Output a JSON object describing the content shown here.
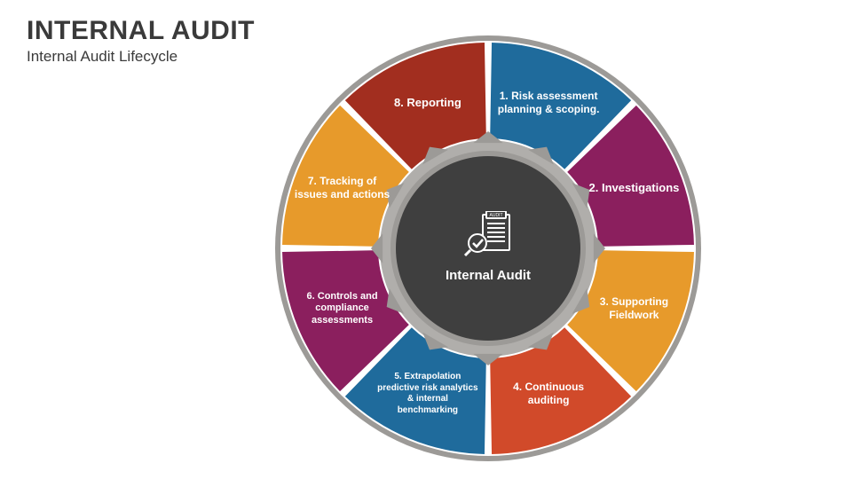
{
  "title": "INTERNAL AUDIT",
  "subtitle": "Internal Audit Lifecycle",
  "center_label": "Internal Audit",
  "diagram": {
    "type": "radial-segmented-wheel",
    "segments_count": 8,
    "outer_radius": 240,
    "inner_radius": 120,
    "gap_deg": 2,
    "background_color": "#ffffff",
    "rim_color": "#9c9a97",
    "gear_ring_outer_color": "#b0aeab",
    "gear_ring_inner_color": "#9c9a97",
    "center_fill": "#3f3f3f",
    "center_text_color": "#ffffff",
    "label_color": "#ffffff",
    "label_fontsize_default": 12,
    "segments": [
      {
        "n": 1,
        "label": "1. Risk assessment planning & scoping.",
        "color": "#1f6b9c",
        "fontsize": 12
      },
      {
        "n": 2,
        "label": "2. Investigations",
        "color": "#8b1f5e",
        "fontsize": 13
      },
      {
        "n": 3,
        "label": "3. Supporting Fieldwork",
        "color": "#e79a2b",
        "fontsize": 12
      },
      {
        "n": 4,
        "label": "4. Continuous auditing",
        "color": "#d14a2a",
        "fontsize": 12
      },
      {
        "n": 5,
        "label": "5. Extrapolation predictive risk analytics & internal benchmarking",
        "color": "#1f6b9c",
        "fontsize": 10
      },
      {
        "n": 6,
        "label": "6. Controls and compliance assessments",
        "color": "#8b1f5e",
        "fontsize": 11
      },
      {
        "n": 7,
        "label": "7. Tracking of issues and actions",
        "color": "#e79a2b",
        "fontsize": 12
      },
      {
        "n": 8,
        "label": "8. Reporting",
        "color": "#a22e1f",
        "fontsize": 13
      }
    ]
  }
}
